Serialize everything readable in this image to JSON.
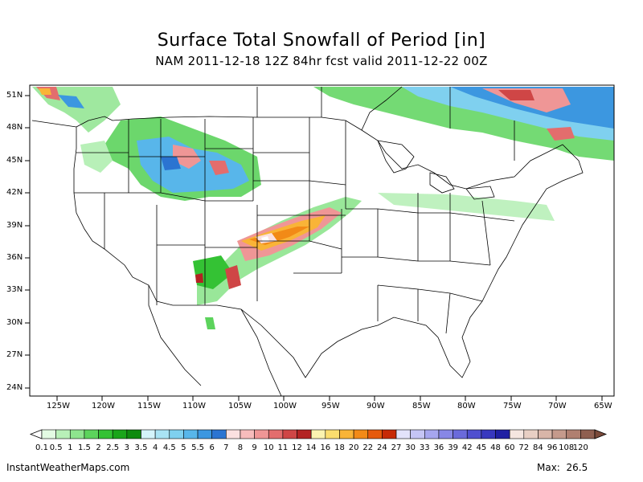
{
  "title": "Surface Total Snowfall of Period [in]",
  "subtitle": "NAM 2011-12-18 12Z 84hr fcst valid 2011-12-22 00Z",
  "lat_labels": [
    "51N",
    "48N",
    "45N",
    "42N",
    "39N",
    "36N",
    "33N",
    "30N",
    "27N",
    "24N"
  ],
  "lon_labels": [
    "125W",
    "120W",
    "115W",
    "110W",
    "105W",
    "100W",
    "95W",
    "90W",
    "85W",
    "80W",
    "75W",
    "70W",
    "65W"
  ],
  "legend": {
    "labels": [
      "0.1",
      "0.5",
      "1",
      "1.5",
      "2",
      "2.5",
      "3",
      "3.5",
      "4",
      "4.5",
      "5",
      "5.5",
      "6",
      "7",
      "8",
      "9",
      "10",
      "11",
      "12",
      "14",
      "16",
      "18",
      "20",
      "22",
      "24",
      "27",
      "30",
      "33",
      "36",
      "39",
      "42",
      "45",
      "48",
      "60",
      "72",
      "84",
      "96",
      "108",
      "120"
    ],
    "colors": [
      "#e3fbe3",
      "#b8f0b8",
      "#8ee48e",
      "#5cd35c",
      "#34c234",
      "#1aa51a",
      "#0e8b0e",
      "#d4f4fb",
      "#a9e3f4",
      "#7fd0ef",
      "#58b6ea",
      "#3c97e0",
      "#2b74d1",
      "#fbe0e0",
      "#f7bcbc",
      "#ef9696",
      "#e36d6d",
      "#cf4646",
      "#b32323",
      "#fbf3b0",
      "#fbdd6e",
      "#f9b437",
      "#f28a17",
      "#e65a0c",
      "#c72a07",
      "#e3e3fb",
      "#c5c5f5",
      "#a6a6ef",
      "#8787e6",
      "#6a6adb",
      "#4f4fcf",
      "#3838bf",
      "#2020a3",
      "#f5e6e0",
      "#e8cfc4",
      "#d8b5a8",
      "#c59a8c",
      "#b07f70",
      "#8f5f50"
    ]
  },
  "source": "InstantWeatherMaps.com",
  "max_label": "Max:",
  "max_value": "26.5"
}
